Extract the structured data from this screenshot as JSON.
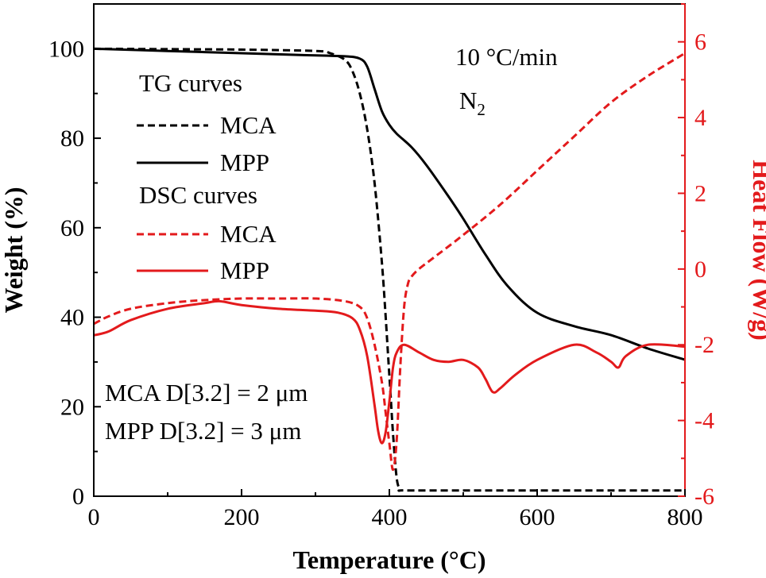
{
  "chart_data": {
    "type": "line",
    "xlabel": "Temperature (°C)",
    "ylabel": "Weight (%)",
    "y2label": "Heat Flow (W/g)",
    "xlim": [
      0,
      800
    ],
    "ylim": [
      0,
      110
    ],
    "y2lim": [
      -6,
      7
    ],
    "xticks": [
      0,
      200,
      400,
      600,
      800
    ],
    "yticks": [
      0,
      20,
      40,
      60,
      80,
      100
    ],
    "y2ticks": [
      -6,
      -4,
      -2,
      0,
      2,
      4,
      6
    ],
    "grid": false,
    "legend": {
      "placement": "top-left",
      "groups": [
        {
          "title": "TG curves",
          "entries": [
            {
              "label": "MCA",
              "color": "#000000",
              "dash": "dashed"
            },
            {
              "label": "MPP",
              "color": "#000000",
              "dash": "solid"
            }
          ]
        },
        {
          "title": "DSC curves",
          "entries": [
            {
              "label": "MCA",
              "color": "#e31a1c",
              "dash": "dashed"
            },
            {
              "label": "MPP",
              "color": "#e31a1c",
              "dash": "solid"
            }
          ]
        }
      ]
    },
    "annotations": {
      "rate": "10 °C/min",
      "atmosphere": "N",
      "atmosphere_sub": "2",
      "size_mca": "MCA D[3.2] = 2 μm",
      "size_mpp": "MPP  D[3.2] = 3 μm"
    },
    "series": [
      {
        "name": "MCA",
        "group": "TG",
        "axis": "left",
        "color": "#000000",
        "dash": "dashed",
        "x": [
          0,
          100,
          200,
          300,
          320,
          340,
          350,
          360,
          370,
          380,
          390,
          395,
          400,
          405,
          410,
          415,
          420,
          500,
          600,
          700,
          800
        ],
        "y": [
          100,
          99.9,
          99.8,
          99.5,
          99,
          97.5,
          95,
          90,
          82,
          70,
          52,
          40,
          27,
          14,
          4,
          1.5,
          1.3,
          1.3,
          1.3,
          1.3,
          1.3
        ]
      },
      {
        "name": "MPP",
        "group": "TG",
        "axis": "left",
        "color": "#000000",
        "dash": "solid",
        "x": [
          0,
          100,
          200,
          300,
          340,
          360,
          370,
          380,
          390,
          400,
          410,
          430,
          450,
          480,
          500,
          530,
          560,
          600,
          650,
          700,
          750,
          800
        ],
        "y": [
          100,
          99.5,
          99,
          98.5,
          98.3,
          97.8,
          96,
          91,
          86,
          83,
          81,
          78,
          74,
          67,
          62,
          54,
          47,
          41,
          38,
          36,
          33,
          30.5
        ]
      },
      {
        "name": "MCA",
        "group": "DSC",
        "axis": "right",
        "color": "#e31a1c",
        "dash": "dashed",
        "x": [
          0,
          20,
          50,
          100,
          150,
          200,
          250,
          300,
          340,
          360,
          370,
          380,
          390,
          395,
          400,
          405,
          410,
          415,
          420,
          425,
          430,
          440,
          460,
          500,
          550,
          600,
          650,
          700,
          750,
          800
        ],
        "y": [
          -1.45,
          -1.25,
          -1.05,
          -0.9,
          -0.82,
          -0.78,
          -0.78,
          -0.78,
          -0.85,
          -1.0,
          -1.3,
          -2.0,
          -3.0,
          -3.8,
          -4.6,
          -5.3,
          -4.5,
          -2.5,
          -1.0,
          -0.4,
          -0.2,
          0.0,
          0.3,
          0.9,
          1.7,
          2.6,
          3.5,
          4.4,
          5.1,
          5.7
        ]
      },
      {
        "name": "MPP",
        "group": "DSC",
        "axis": "right",
        "color": "#e31a1c",
        "dash": "solid",
        "x": [
          0,
          20,
          50,
          100,
          150,
          170,
          200,
          250,
          300,
          330,
          350,
          360,
          370,
          380,
          385,
          390,
          395,
          400,
          405,
          410,
          420,
          440,
          460,
          480,
          500,
          520,
          530,
          540,
          550,
          570,
          600,
          650,
          680,
          700,
          710,
          720,
          750,
          800
        ],
        "y": [
          -1.75,
          -1.65,
          -1.35,
          -1.05,
          -0.9,
          -0.85,
          -0.95,
          -1.05,
          -1.1,
          -1.15,
          -1.3,
          -1.6,
          -2.3,
          -3.6,
          -4.3,
          -4.6,
          -4.3,
          -3.5,
          -2.6,
          -2.2,
          -2.0,
          -2.2,
          -2.4,
          -2.45,
          -2.4,
          -2.6,
          -2.9,
          -3.25,
          -3.15,
          -2.8,
          -2.4,
          -2.0,
          -2.2,
          -2.45,
          -2.6,
          -2.3,
          -2.0,
          -2.05
        ]
      }
    ]
  }
}
